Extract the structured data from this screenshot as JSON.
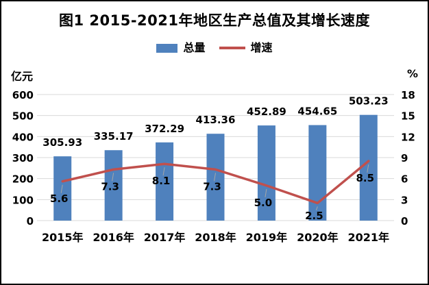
{
  "title": "图1 2015-2021年地区生产总值及其增长速度",
  "chart_data": {
    "type": "combo-bar-line",
    "title": "图1 2015-2021年地区生产总值及其增长速度",
    "categories": [
      "2015年",
      "2016年",
      "2017年",
      "2018年",
      "2019年",
      "2020年",
      "2021年"
    ],
    "series": [
      {
        "name": "总量",
        "type": "bar",
        "axis": "left",
        "color": "#4F81BD",
        "values": [
          305.93,
          335.17,
          372.29,
          413.36,
          452.89,
          454.65,
          503.23
        ],
        "labels": [
          "305.93",
          "335.17",
          "372.29",
          "413.36",
          "452.89",
          "454.65",
          "503.23"
        ]
      },
      {
        "name": "增速",
        "type": "line",
        "axis": "right",
        "color": "#C0504D",
        "values": [
          5.6,
          7.3,
          8.1,
          7.3,
          5.0,
          2.5,
          8.5
        ],
        "labels": [
          "5.6",
          "7.3",
          "8.1",
          "7.3",
          "5.0",
          "2.5",
          "8.5"
        ]
      }
    ],
    "left_axis": {
      "unit": "亿元",
      "min": 0,
      "max": 600,
      "ticks": [
        0,
        100,
        200,
        300,
        400,
        500,
        600
      ]
    },
    "right_axis": {
      "unit": "%",
      "min": 0,
      "max": 18,
      "ticks": [
        0,
        3,
        6,
        9,
        12,
        15,
        18
      ]
    },
    "grid": true,
    "legend_position": "top",
    "gridline_color": "#D9D9D9",
    "leader_line_color": "#A6A6A6",
    "label_color": "#000000"
  }
}
